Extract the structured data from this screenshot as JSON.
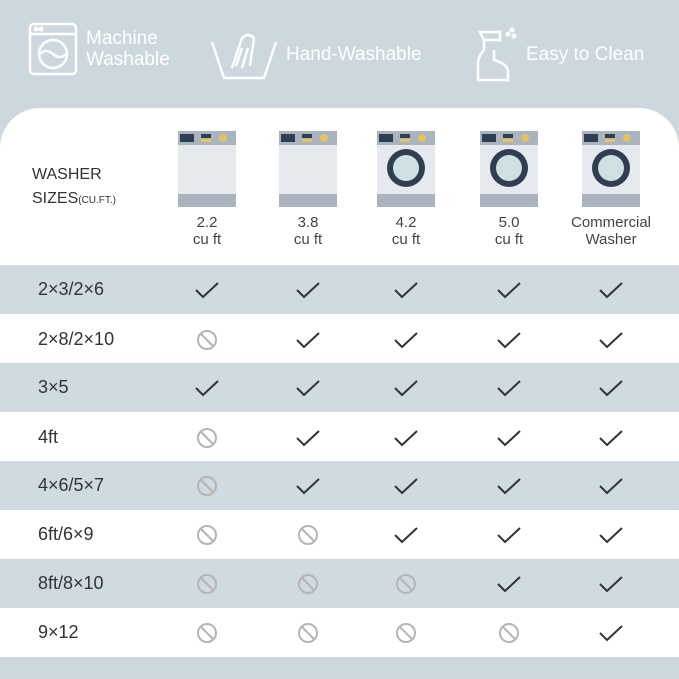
{
  "features": [
    {
      "icon": "washing-machine-icon",
      "label_line1": "Machine",
      "label_line2": "Washable"
    },
    {
      "icon": "hand-wash-icon",
      "label": "Hand-Washable"
    },
    {
      "icon": "spray-bottle-icon",
      "label": "Easy to Clean"
    }
  ],
  "table": {
    "header_line1": "WASHER",
    "header_line2": "SIZES",
    "header_unit": "(CU.FT.)",
    "columns": [
      {
        "line1": "2.2",
        "line2": "cu ft",
        "type": "top-load"
      },
      {
        "line1": "3.8",
        "line2": "cu ft",
        "type": "top-load"
      },
      {
        "line1": "4.2",
        "line2": "cu ft",
        "type": "front-load"
      },
      {
        "line1": "5.0",
        "line2": "cu ft",
        "type": "front-load"
      },
      {
        "line1": "Commercial",
        "line2": "Washer",
        "type": "front-load"
      }
    ],
    "rows": [
      {
        "label": "2×3/2×6",
        "fits": [
          true,
          true,
          true,
          true,
          true
        ]
      },
      {
        "label": "2×8/2×10",
        "fits": [
          false,
          true,
          true,
          true,
          true
        ]
      },
      {
        "label": "3×5",
        "fits": [
          true,
          true,
          true,
          true,
          true
        ]
      },
      {
        "label": "4ft",
        "fits": [
          false,
          true,
          true,
          true,
          true
        ]
      },
      {
        "label": "4×6/5×7",
        "fits": [
          false,
          true,
          true,
          true,
          true
        ]
      },
      {
        "label": "6ft/6×9",
        "fits": [
          false,
          false,
          true,
          true,
          true
        ]
      },
      {
        "label": "8ft/8×10",
        "fits": [
          false,
          false,
          false,
          true,
          true
        ]
      },
      {
        "label": "9×12",
        "fits": [
          false,
          false,
          false,
          false,
          true
        ]
      }
    ]
  },
  "colors": {
    "background": "#cdd8de",
    "row_alt": "#cfdbe1",
    "check": "#333333",
    "no": "#b5b5b5"
  }
}
